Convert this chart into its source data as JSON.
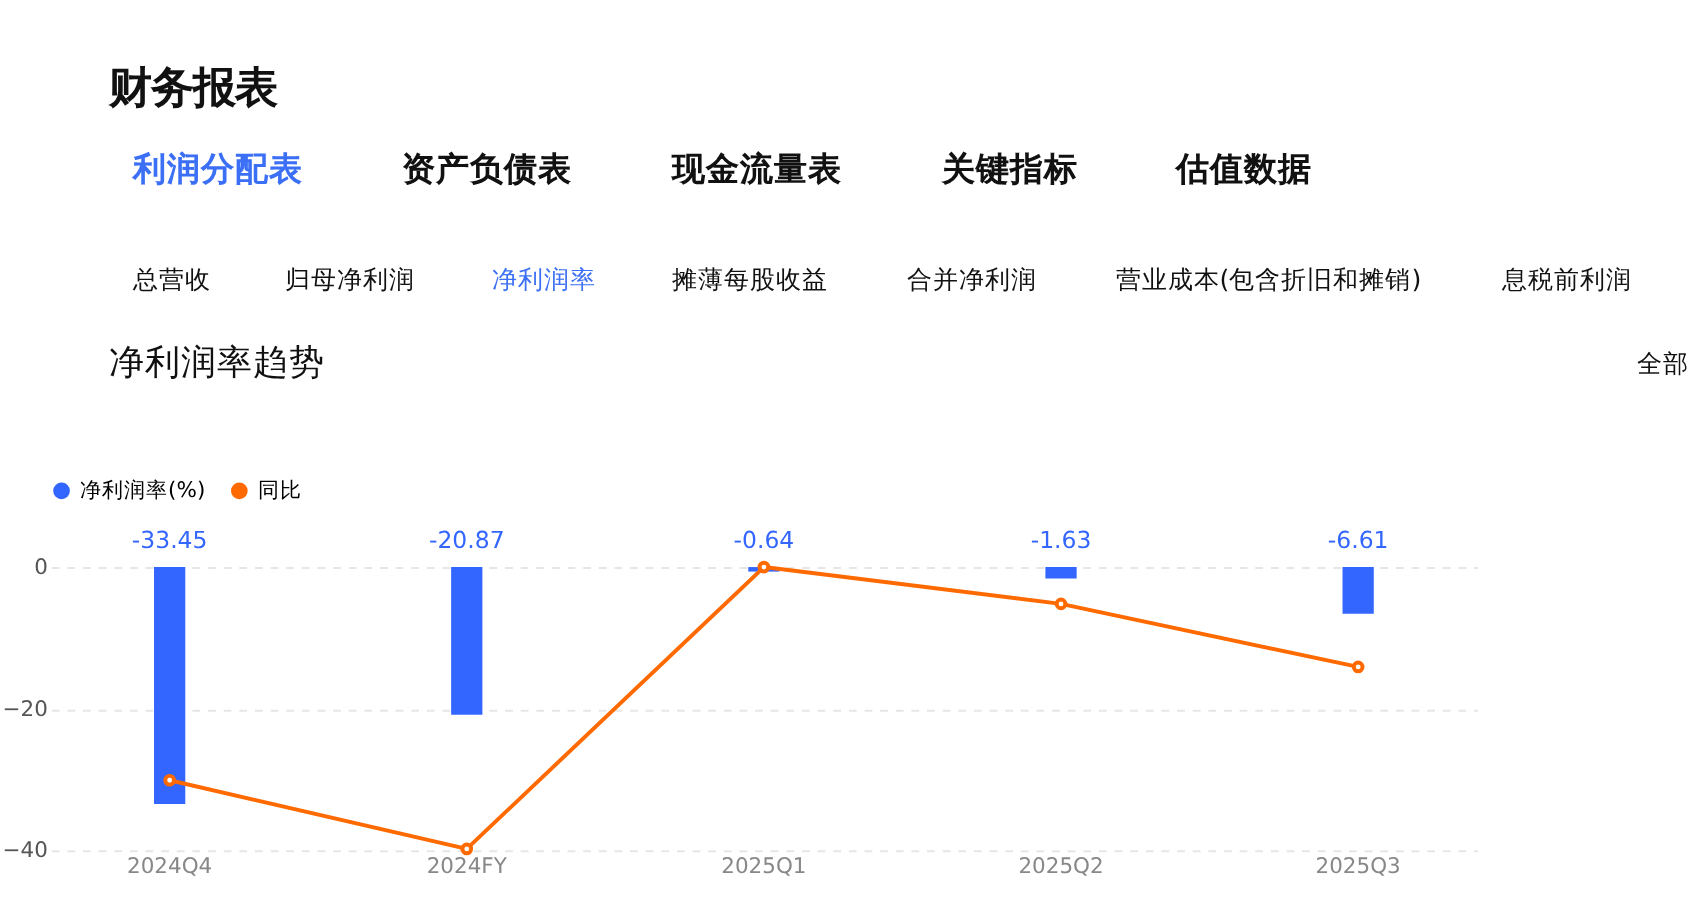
{
  "chart_data": {
    "type": "bar",
    "title": "净利润率趋势",
    "annotations": [
      "财务报表",
      "利润分配表",
      "资产负债表",
      "现金流量表",
      "关键指标",
      "估值数据",
      "总营收",
      "归母净利润",
      "净利润率",
      "摊薄每股收益",
      "合并净利润",
      "营业成本(包含折旧和摊销)",
      "息税前利润",
      "全部"
    ],
    "categories": [
      "2024Q4",
      "2024FY",
      "2025Q1",
      "2025Q2",
      "2025Q3"
    ],
    "series": [
      {
        "name": "净利润率(%)",
        "color": "#3366ff",
        "values": [
          -33.45,
          -20.87,
          -0.64,
          -1.63,
          -6.61
        ],
        "value_labels": [
          "-33.45",
          "-20.87",
          "-0.64",
          "-1.63",
          "-6.61"
        ]
      },
      {
        "name": "同比",
        "type": "line",
        "color": "#ff6a00",
        "values": [
          -30.1,
          -39.8,
          0,
          -5.2,
          -14.1
        ],
        "marker": "circle"
      }
    ],
    "ylim": [
      -40,
      0
    ],
    "yticks": [
      0,
      -20,
      -40
    ],
    "grid": "y",
    "legend": "top left"
  }
}
